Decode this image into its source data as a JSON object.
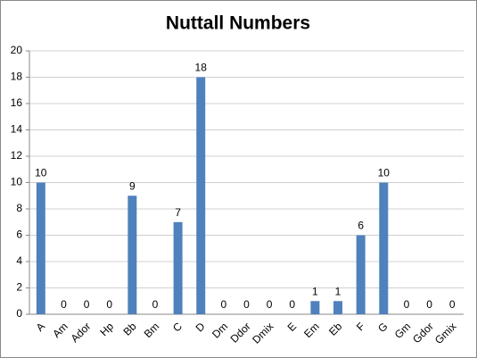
{
  "chart_data": {
    "type": "bar",
    "title": "Nuttall Numbers",
    "categories": [
      "A",
      "Am",
      "Ador",
      "Hp",
      "Bb",
      "Bm",
      "C",
      "D",
      "Dm",
      "Ddor",
      "Dmix",
      "E",
      "Em",
      "Eb",
      "F",
      "G",
      "Gm",
      "Gdor",
      "Gmix"
    ],
    "values": [
      10,
      0,
      0,
      0,
      9,
      0,
      7,
      18,
      0,
      0,
      0,
      0,
      1,
      1,
      6,
      10,
      0,
      0,
      0
    ],
    "color": "#4f81bd",
    "ylim": [
      0,
      20
    ],
    "yticks": [
      0,
      2,
      4,
      6,
      8,
      10,
      12,
      14,
      16,
      18,
      20
    ],
    "grid": true
  }
}
